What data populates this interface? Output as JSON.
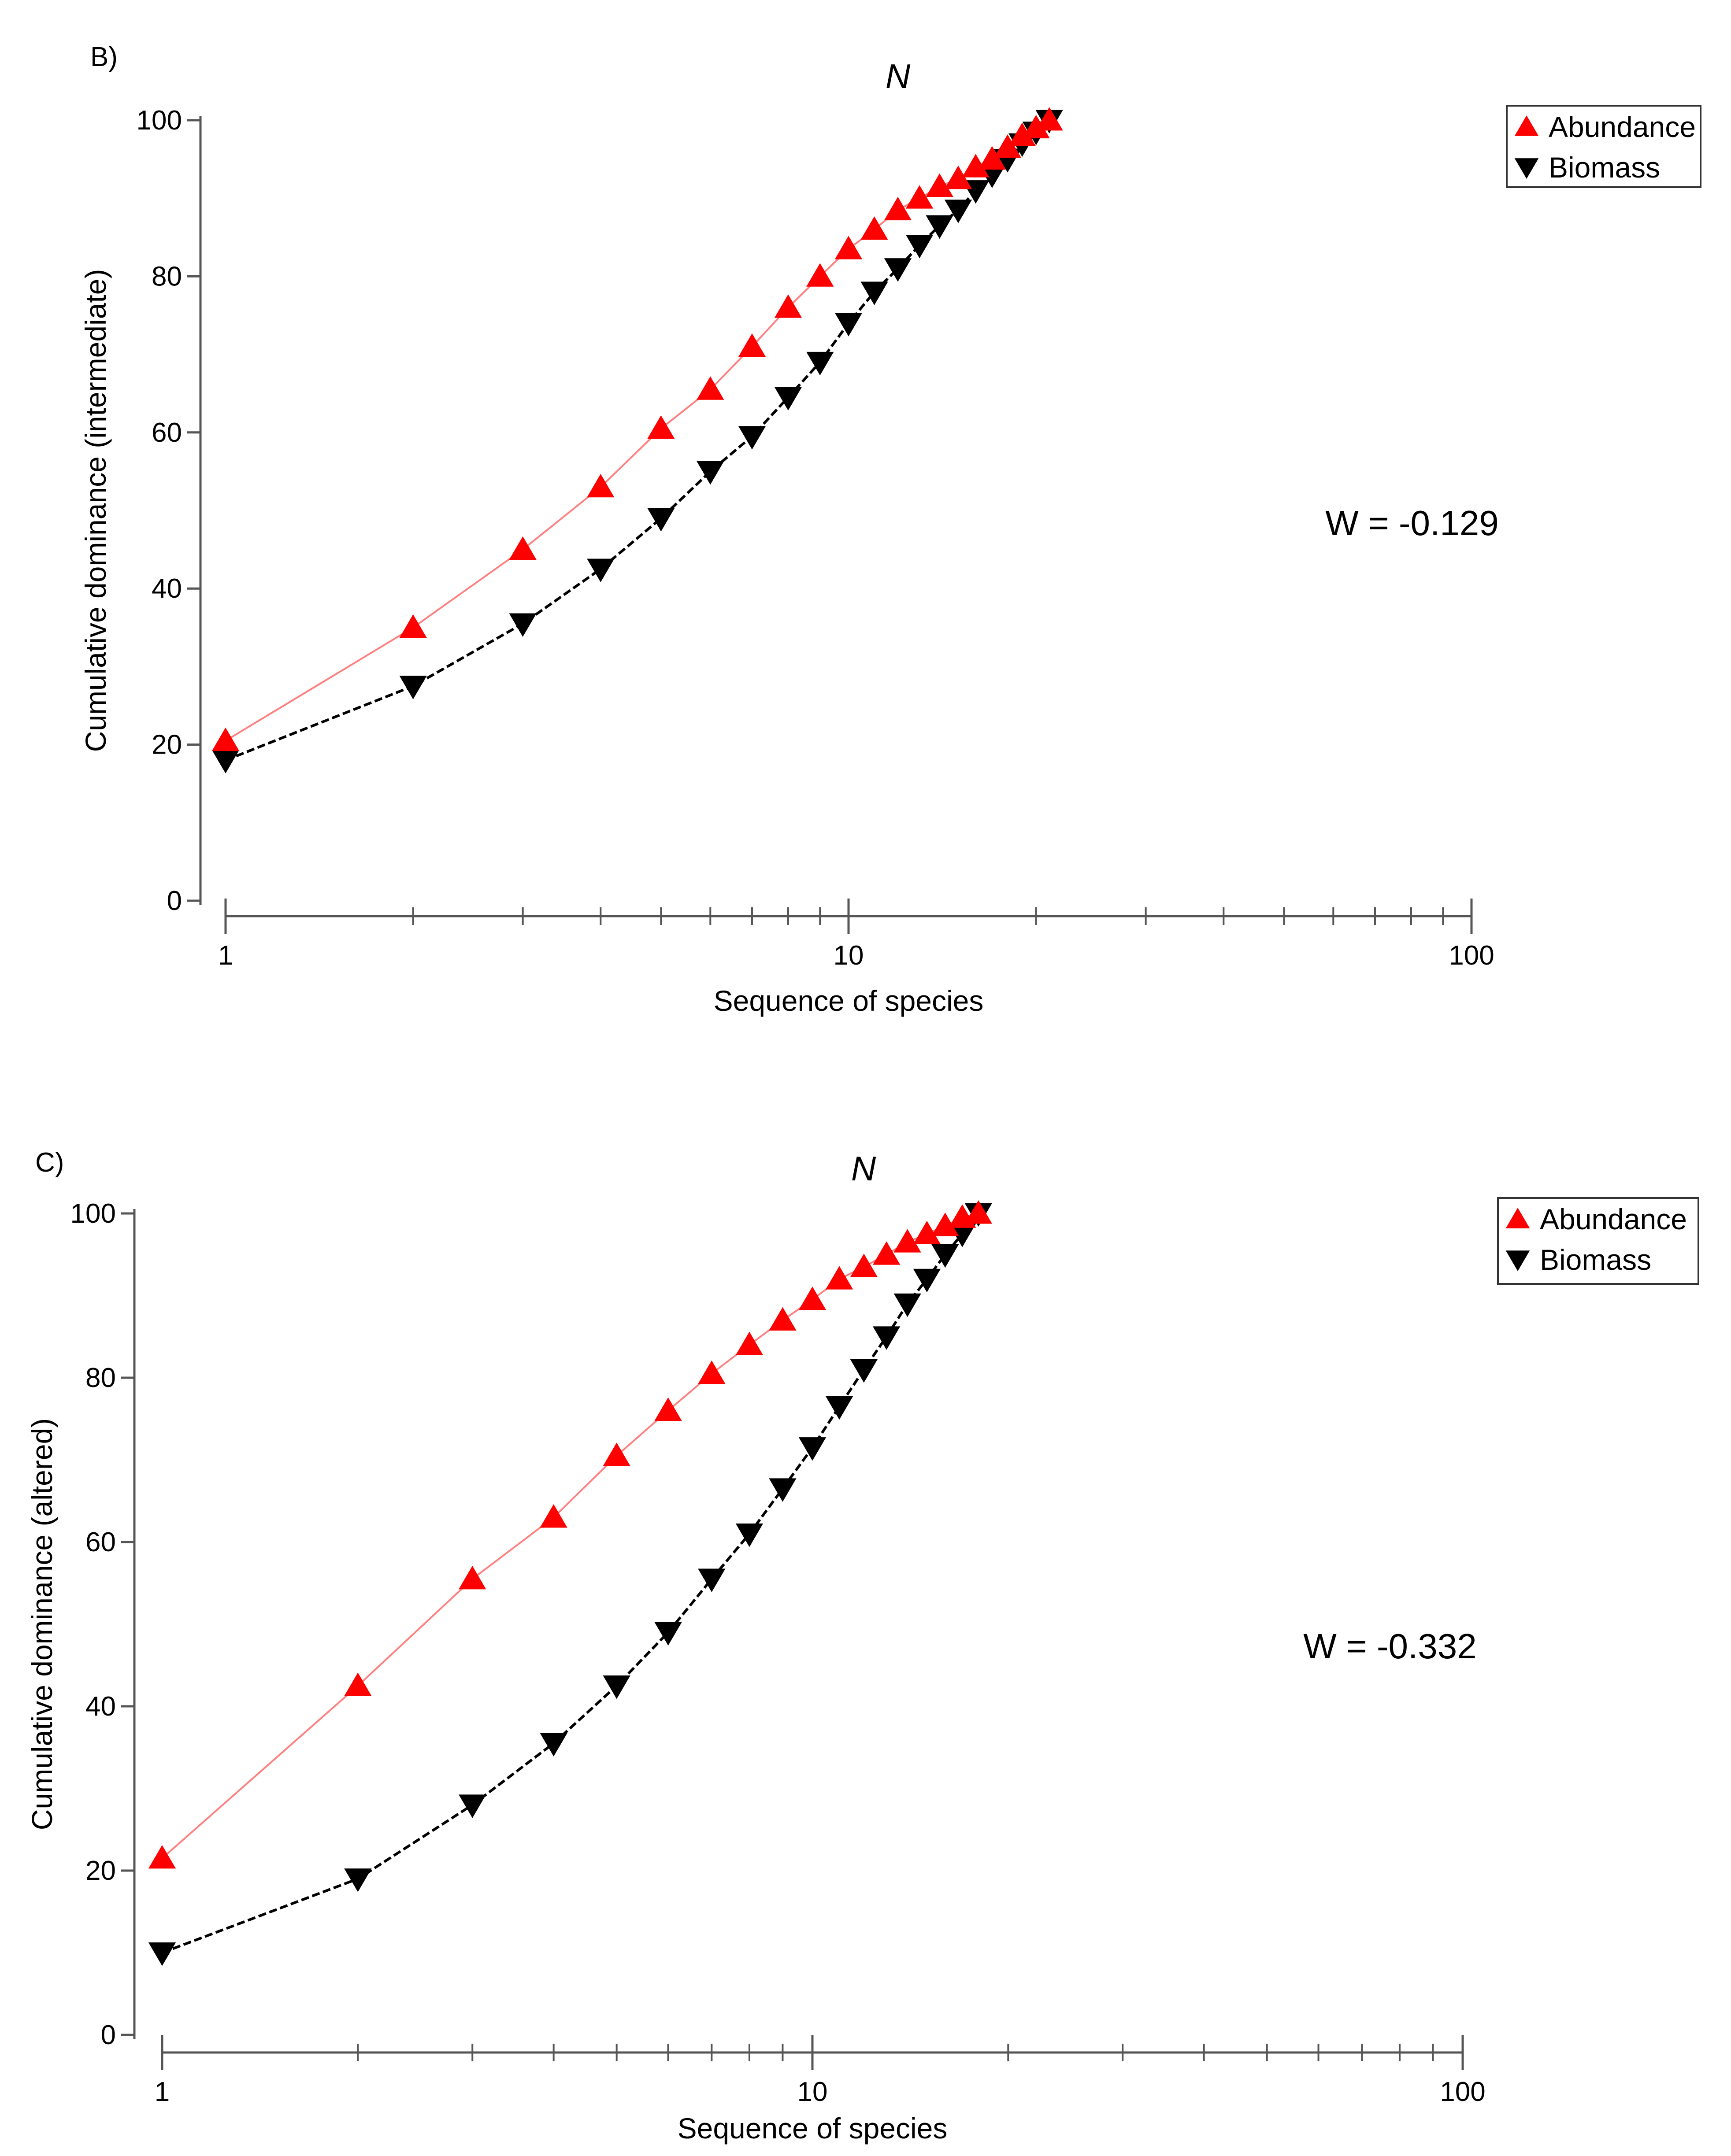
{
  "chart_data": [
    {
      "type": "line",
      "panel_label": "B)",
      "title": "N",
      "xlabel": "Sequence of species",
      "ylabel": "Cumulative dominance (intermediate)",
      "x_scale": "log",
      "xlim": [
        1,
        100
      ],
      "ylim": [
        0,
        100
      ],
      "x_ticks": [
        "1",
        "10",
        "100"
      ],
      "y_ticks": [
        "0",
        "20",
        "40",
        "60",
        "80",
        "100"
      ],
      "grid": false,
      "legend_position": "top-right",
      "annotation": "W = -0.129",
      "x": [
        1,
        2,
        3,
        4,
        5,
        6,
        7,
        8,
        9,
        10,
        11,
        12,
        13,
        14,
        15,
        16,
        17,
        18,
        19,
        20,
        21
      ],
      "series": [
        {
          "name": "Abundance",
          "color": "#ff0000",
          "line_color": "#ff8080",
          "marker": "triangle-up",
          "values": [
            20.5,
            35,
            45,
            53,
            60.5,
            65.5,
            71,
            76,
            80,
            83.5,
            86,
            88.5,
            90,
            91.5,
            92.5,
            94,
            95,
            96.5,
            98,
            99,
            100
          ]
        },
        {
          "name": "Biomass",
          "color": "#000000",
          "line_color": "#000000",
          "marker": "triangle-down",
          "values": [
            18,
            27.5,
            35.5,
            42.5,
            49,
            55,
            59.5,
            64.5,
            69,
            74,
            78,
            81,
            84,
            86.5,
            88.5,
            91,
            93,
            95,
            97,
            98.5,
            100
          ]
        }
      ]
    },
    {
      "type": "line",
      "panel_label": "C)",
      "title": "N",
      "xlabel": "Sequence of species",
      "ylabel": "Cumulative dominance (altered)",
      "x_scale": "log",
      "xlim": [
        1,
        100
      ],
      "ylim": [
        0,
        100
      ],
      "x_ticks": [
        "1",
        "10",
        "100"
      ],
      "y_ticks": [
        "0",
        "20",
        "40",
        "60",
        "80",
        "100"
      ],
      "grid": false,
      "legend_position": "top-right",
      "annotation": "W = -0.332",
      "x": [
        1,
        2,
        3,
        4,
        5,
        6,
        7,
        8,
        9,
        10,
        11,
        12,
        13,
        14,
        15,
        16,
        17,
        18
      ],
      "series": [
        {
          "name": "Abundance",
          "color": "#ff0000",
          "line_color": "#ff8080",
          "marker": "triangle-up",
          "values": [
            21.5,
            42.5,
            55.5,
            63,
            70.5,
            76,
            80.5,
            84,
            87,
            89.5,
            92,
            93.5,
            95,
            96.5,
            97.5,
            98.5,
            99.5,
            100
          ]
        },
        {
          "name": "Biomass",
          "color": "#000000",
          "line_color": "#000000",
          "marker": "triangle-down",
          "values": [
            10,
            19,
            28,
            35.5,
            42.5,
            49,
            55.5,
            61,
            66.5,
            71.5,
            76.5,
            81,
            85,
            89,
            92,
            95,
            97.5,
            100
          ]
        }
      ]
    }
  ]
}
